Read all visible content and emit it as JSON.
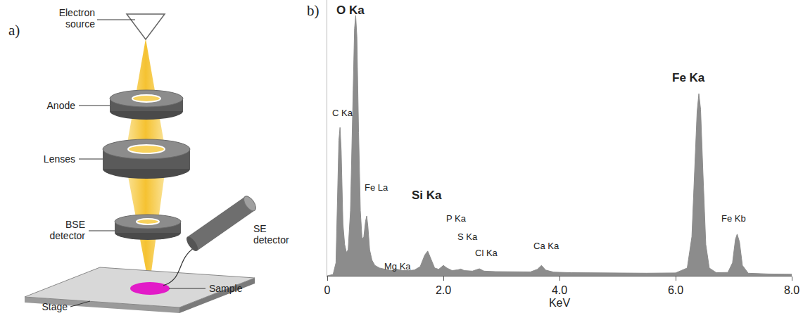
{
  "diagram": {
    "letter": "a)",
    "labels": {
      "electron_source": "Electron source",
      "anode": "Anode",
      "lenses": "Lenses",
      "bse_detector": "BSE detector",
      "se_detector": "SE detector",
      "sample": "Sample",
      "stage": "Stage"
    }
  },
  "chart_data": {
    "type": "area",
    "letter": "b)",
    "x_label": "KeV",
    "color": "#8c8c8c",
    "x": [
      0.0,
      0.1,
      0.15,
      0.18,
      0.2,
      0.22,
      0.24,
      0.27,
      0.3,
      0.33,
      0.36,
      0.4,
      0.44,
      0.47,
      0.49,
      0.51,
      0.54,
      0.57,
      0.6,
      0.63,
      0.66,
      0.68,
      0.7,
      0.73,
      0.77,
      0.82,
      0.9,
      1.0,
      1.1,
      1.2,
      1.25,
      1.3,
      1.4,
      1.5,
      1.6,
      1.68,
      1.73,
      1.78,
      1.85,
      1.92,
      2.0,
      2.06,
      2.15,
      2.25,
      2.3,
      2.36,
      2.5,
      2.62,
      2.7,
      2.9,
      3.2,
      3.5,
      3.62,
      3.69,
      3.76,
      3.9,
      4.2,
      4.6,
      5.0,
      5.5,
      6.0,
      6.2,
      6.28,
      6.33,
      6.37,
      6.4,
      6.43,
      6.47,
      6.52,
      6.58,
      6.7,
      6.9,
      6.98,
      7.03,
      7.06,
      7.1,
      7.15,
      7.25,
      7.6,
      8.0
    ],
    "values": [
      0,
      0.5,
      5,
      30,
      52,
      57,
      48,
      20,
      12,
      9,
      10,
      25,
      70,
      95,
      100,
      92,
      55,
      25,
      14,
      15,
      21,
      23,
      19,
      10,
      6,
      4,
      3,
      2.5,
      2,
      2.5,
      2.2,
      2,
      2,
      2.2,
      3.5,
      8,
      9.5,
      7,
      3,
      2.5,
      4,
      3,
      2,
      2.3,
      2.6,
      2,
      1.8,
      2.7,
      1.8,
      1.6,
      1.5,
      1.5,
      2.5,
      4,
      2.2,
      1.4,
      1.2,
      1.1,
      1.0,
      1.0,
      1.1,
      3,
      15,
      40,
      63,
      70,
      64,
      40,
      12,
      3,
      1.2,
      1.3,
      5,
      14,
      16,
      13,
      4,
      1,
      0.7,
      0.6
    ],
    "xlim": [
      0,
      8
    ],
    "xticks": [
      0,
      {
        "value": 2,
        "label": "2.0"
      },
      {
        "value": 4,
        "label": "4.0"
      },
      {
        "value": 6,
        "label": "6.0"
      },
      {
        "value": 8,
        "label": "8.0"
      }
    ],
    "ylim": [
      0,
      106
    ],
    "grid": false,
    "tick_labels": "x",
    "annotations": [
      {
        "text": "O Ka",
        "x": 0.4,
        "y": 102
      },
      {
        "text": "C Ka",
        "x": 0.27,
        "y": 62.7
      },
      {
        "text": "Fe La",
        "x": 0.85,
        "y": 34
      },
      {
        "text": "Mg Ka",
        "x": 1.21,
        "y": 3.6
      },
      {
        "text": "Si Ka",
        "x": 1.72,
        "y": 31
      },
      {
        "text": "P Ka",
        "x": 2.22,
        "y": 22
      },
      {
        "text": "S Ka",
        "x": 2.42,
        "y": 15
      },
      {
        "text": "Cl Ka",
        "x": 2.75,
        "y": 8.7
      },
      {
        "text": "Ca Ka",
        "x": 3.78,
        "y": 11.4
      },
      {
        "text": "Fe Ka",
        "x": 6.22,
        "y": 76
      },
      {
        "text": "Fe Kb",
        "x": 7.0,
        "y": 22
      }
    ]
  }
}
